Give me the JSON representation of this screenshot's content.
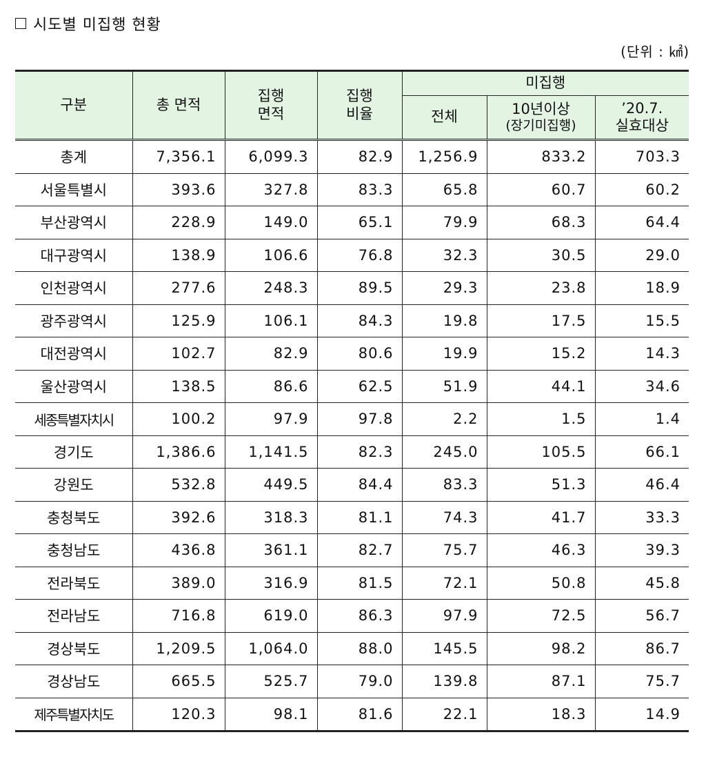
{
  "title": "시도별 미집행 현황",
  "unit": "(단위 : ㎢)",
  "headers": {
    "region": "구분",
    "total_area": "총 면적",
    "exec_area_l1": "집행",
    "exec_area_l2": "면적",
    "exec_ratio_l1": "집행",
    "exec_ratio_l2": "비율",
    "unexec_group": "미집행",
    "unexec_total": "전체",
    "over10_l1": "10년이상",
    "over10_l2": "(장기미집행)",
    "lapse_l1": "’20.7.",
    "lapse_l2": "실효대상"
  },
  "rows": [
    {
      "region": "총계",
      "total_area": "7,356.1",
      "exec_area": "6,099.3",
      "exec_ratio": "82.9",
      "unexec_total": "1,256.9",
      "over10": "833.2",
      "lapse": "703.3"
    },
    {
      "region": "서울특별시",
      "total_area": "393.6",
      "exec_area": "327.8",
      "exec_ratio": "83.3",
      "unexec_total": "65.8",
      "over10": "60.7",
      "lapse": "60.2"
    },
    {
      "region": "부산광역시",
      "total_area": "228.9",
      "exec_area": "149.0",
      "exec_ratio": "65.1",
      "unexec_total": "79.9",
      "over10": "68.3",
      "lapse": "64.4"
    },
    {
      "region": "대구광역시",
      "total_area": "138.9",
      "exec_area": "106.6",
      "exec_ratio": "76.8",
      "unexec_total": "32.3",
      "over10": "30.5",
      "lapse": "29.0"
    },
    {
      "region": "인천광역시",
      "total_area": "277.6",
      "exec_area": "248.3",
      "exec_ratio": "89.5",
      "unexec_total": "29.3",
      "over10": "23.8",
      "lapse": "18.9"
    },
    {
      "region": "광주광역시",
      "total_area": "125.9",
      "exec_area": "106.1",
      "exec_ratio": "84.3",
      "unexec_total": "19.8",
      "over10": "17.5",
      "lapse": "15.5"
    },
    {
      "region": "대전광역시",
      "total_area": "102.7",
      "exec_area": "82.9",
      "exec_ratio": "80.6",
      "unexec_total": "19.9",
      "over10": "15.2",
      "lapse": "14.3"
    },
    {
      "region": "울산광역시",
      "total_area": "138.5",
      "exec_area": "86.6",
      "exec_ratio": "62.5",
      "unexec_total": "51.9",
      "over10": "44.1",
      "lapse": "34.6"
    },
    {
      "region": "세종특별자치시",
      "total_area": "100.2",
      "exec_area": "97.9",
      "exec_ratio": "97.8",
      "unexec_total": "2.2",
      "over10": "1.5",
      "lapse": "1.4"
    },
    {
      "region": "경기도",
      "total_area": "1,386.6",
      "exec_area": "1,141.5",
      "exec_ratio": "82.3",
      "unexec_total": "245.0",
      "over10": "105.5",
      "lapse": "66.1"
    },
    {
      "region": "강원도",
      "total_area": "532.8",
      "exec_area": "449.5",
      "exec_ratio": "84.4",
      "unexec_total": "83.3",
      "over10": "51.3",
      "lapse": "46.4"
    },
    {
      "region": "충청북도",
      "total_area": "392.6",
      "exec_area": "318.3",
      "exec_ratio": "81.1",
      "unexec_total": "74.3",
      "over10": "41.7",
      "lapse": "33.3"
    },
    {
      "region": "충청남도",
      "total_area": "436.8",
      "exec_area": "361.1",
      "exec_ratio": "82.7",
      "unexec_total": "75.7",
      "over10": "46.3",
      "lapse": "39.3"
    },
    {
      "region": "전라북도",
      "total_area": "389.0",
      "exec_area": "316.9",
      "exec_ratio": "81.5",
      "unexec_total": "72.1",
      "over10": "50.8",
      "lapse": "45.8"
    },
    {
      "region": "전라남도",
      "total_area": "716.8",
      "exec_area": "619.0",
      "exec_ratio": "86.3",
      "unexec_total": "97.9",
      "over10": "72.5",
      "lapse": "56.7"
    },
    {
      "region": "경상북도",
      "total_area": "1,209.5",
      "exec_area": "1,064.0",
      "exec_ratio": "88.0",
      "unexec_total": "145.5",
      "over10": "98.2",
      "lapse": "86.7"
    },
    {
      "region": "경상남도",
      "total_area": "665.5",
      "exec_area": "525.7",
      "exec_ratio": "79.0",
      "unexec_total": "139.8",
      "over10": "87.1",
      "lapse": "75.7"
    },
    {
      "region": "제주특별자치도",
      "total_area": "120.3",
      "exec_area": "98.1",
      "exec_ratio": "81.6",
      "unexec_total": "22.1",
      "over10": "18.3",
      "lapse": "14.9"
    }
  ],
  "colors": {
    "header_bg": "#e3f4e3",
    "border": "#222222"
  }
}
